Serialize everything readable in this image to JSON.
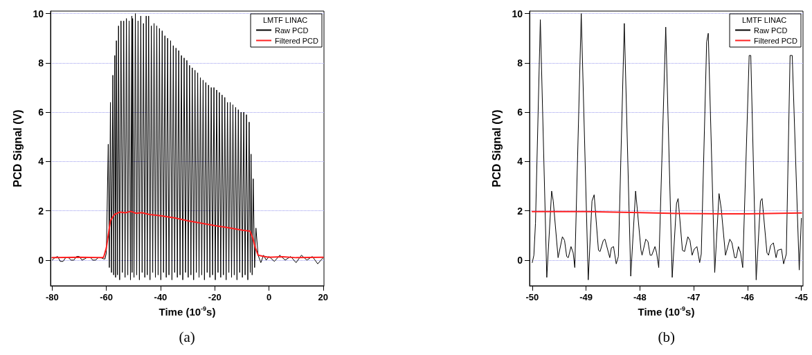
{
  "chart_data": [
    {
      "type": "line",
      "xlabel": "Time (10$^{-9}$s)",
      "ylabel": "PCD Signal (V)",
      "legend_title": "LMTF LINAC",
      "annotations": [
        "(a)"
      ],
      "xlim": [
        -80.6,
        20.3
      ],
      "xticks": [
        -80,
        -60,
        -40,
        -20,
        0,
        20
      ],
      "ylim": [
        -1.04,
        10.1
      ],
      "yticks": [
        0,
        2,
        4,
        6,
        8,
        10
      ],
      "grid": "y",
      "legend": "top right",
      "marker": "none",
      "line_style": "solid",
      "series": [
        {
          "name": "Raw PCD",
          "color": "#000000",
          "x": [
            -80,
            -79,
            -78,
            -77,
            -76,
            -75,
            -74,
            -73,
            -72,
            -71,
            -70,
            -69,
            -68,
            -67,
            -66,
            -65,
            -64,
            -63,
            -62,
            -61,
            -60.5,
            -60,
            -59.3,
            -58.9,
            -58.5,
            -58.1,
            -57.6,
            -57.3,
            -56.9,
            -56.6,
            -56.3,
            -55.9,
            -55.5,
            -55.1,
            -54.6,
            -54.1,
            -53.6,
            -53.1,
            -52.6,
            -52.1,
            -51.6,
            -51.1,
            -50.6,
            -50.5,
            -50.3,
            -49.8,
            -49.3,
            -48.8,
            -48.3,
            -47.8,
            -47.3,
            -46.8,
            -46.3,
            -45.8,
            -45.3,
            -44.9,
            -44.4,
            -43.9,
            -43.4,
            -42.9,
            -42.4,
            -41.9,
            -41.4,
            -40.9,
            -40.4,
            -39.9,
            -39.4,
            -38.9,
            -38.4,
            -37.9,
            -37.4,
            -36.9,
            -36.3,
            -35.8,
            -35.3,
            -34.8,
            -34.3,
            -33.8,
            -33.3,
            -32.8,
            -32.3,
            -31.8,
            -31.3,
            -30.8,
            -30.3,
            -29.8,
            -29.3,
            -28.8,
            -28.3,
            -27.8,
            -27.3,
            -26.8,
            -26.3,
            -25.8,
            -25.3,
            -24.8,
            -24.3,
            -23.8,
            -23.3,
            -22.8,
            -22.3,
            -21.8,
            -21.3,
            -20.8,
            -20.3,
            -19.8,
            -19.3,
            -18.8,
            -18.3,
            -17.8,
            -17.3,
            -16.8,
            -16.3,
            -15.8,
            -15.3,
            -14.8,
            -14.3,
            -13.8,
            -13.3,
            -12.8,
            -12.3,
            -11.8,
            -11.3,
            -10.8,
            -10.3,
            -9.8,
            -9.3,
            -8.8,
            -8.3,
            -7.8,
            -7.3,
            -6.9,
            -6.6,
            -6.2,
            -5.8,
            -5.3,
            -4.8,
            -4,
            -3,
            -2,
            -1,
            0,
            2,
            4,
            6,
            8,
            10,
            12,
            14,
            16,
            18,
            20
          ],
          "values": [
            0.0,
            0.1,
            0.15,
            -0.05,
            -0.05,
            0.1,
            0.1,
            0.0,
            0.0,
            0.15,
            0.15,
            0.0,
            0.05,
            0.12,
            0.12,
            0.0,
            0.0,
            0.1,
            0.1,
            0.05,
            0.05,
            0.3,
            4.7,
            -0.3,
            6.4,
            -0.5,
            7.5,
            -0.6,
            8.3,
            -0.7,
            8.9,
            -0.6,
            9.5,
            -0.8,
            9.7,
            -0.5,
            9.7,
            -0.7,
            9.8,
            -0.6,
            9.7,
            -0.8,
            9.9,
            -0.5,
            9.8,
            -0.7,
            10.0,
            -0.6,
            9.7,
            -0.8,
            9.9,
            -0.5,
            9.6,
            -0.7,
            9.9,
            -0.6,
            9.9,
            -0.8,
            9.5,
            -0.5,
            9.6,
            -0.7,
            9.5,
            -0.6,
            9.4,
            -0.8,
            9.3,
            -0.5,
            9.1,
            -0.7,
            9.0,
            -0.6,
            8.9,
            -0.8,
            8.7,
            -0.5,
            8.6,
            -0.7,
            8.5,
            -0.6,
            8.3,
            -0.8,
            8.2,
            -0.5,
            8.1,
            -0.7,
            7.9,
            -0.6,
            7.8,
            -0.8,
            7.7,
            -0.5,
            7.6,
            -0.7,
            7.4,
            -0.6,
            7.3,
            -0.8,
            7.2,
            -0.5,
            7.1,
            -0.7,
            7.0,
            -0.6,
            7.0,
            -0.8,
            6.9,
            -0.5,
            6.8,
            -0.7,
            6.7,
            -0.6,
            6.6,
            -0.8,
            6.4,
            -0.5,
            6.4,
            -0.7,
            6.3,
            -0.6,
            6.2,
            -0.8,
            6.1,
            -0.5,
            6.0,
            -0.7,
            6.0,
            -0.6,
            5.9,
            -0.8,
            5.6,
            -0.5,
            4.3,
            -0.6,
            3.3,
            -0.3,
            1.3,
            0.2,
            -0.1,
            0.2,
            0.0,
            0.15,
            -0.05,
            0.2,
            0.0,
            0.15,
            -0.1,
            0.2,
            0.0,
            0.15,
            -0.15,
            0.1
          ]
        },
        {
          "name": "Filtered PCD",
          "color": "#ff2020",
          "x": [
            -80,
            -70,
            -62,
            -61,
            -60,
            -58.5,
            -57,
            -55,
            -53,
            -51,
            -49,
            -47,
            -44,
            -40,
            -35,
            -30,
            -25,
            -20,
            -15,
            -10,
            -7,
            -6,
            -5,
            -4,
            -2,
            0,
            5,
            10,
            20
          ],
          "values": [
            0.1,
            0.12,
            0.1,
            0.12,
            0.5,
            1.6,
            1.85,
            1.95,
            1.92,
            1.98,
            1.9,
            1.93,
            1.85,
            1.8,
            1.72,
            1.6,
            1.5,
            1.4,
            1.32,
            1.22,
            1.18,
            0.9,
            0.5,
            0.2,
            0.15,
            0.12,
            0.14,
            0.1,
            0.12
          ]
        }
      ]
    },
    {
      "type": "line",
      "xlabel": "Time (10$^{-9}$s)",
      "ylabel": "PCD Signal (V)",
      "legend_title": "LMTF LINAC",
      "annotations": [
        "(b)"
      ],
      "xlim": [
        -50.05,
        -44.97
      ],
      "xticks": [
        -50,
        -49,
        -48,
        -47,
        -46,
        -45
      ],
      "ylim": [
        -1.04,
        10.1
      ],
      "yticks": [
        0,
        2,
        4,
        6,
        8,
        10
      ],
      "grid": "y",
      "legend": "top right",
      "marker": "none",
      "line_style": "solid",
      "series": [
        {
          "name": "Raw PCD",
          "color": "#000000",
          "x": [
            -50.0,
            -49.97,
            -49.94,
            -49.85,
            -49.73,
            -49.64,
            -49.61,
            -49.52,
            -49.44,
            -49.4,
            -49.36,
            -49.33,
            -49.28,
            -49.24,
            -49.21,
            -49.09,
            -48.96,
            -48.89,
            -48.85,
            -48.77,
            -48.74,
            -48.68,
            -48.65,
            -48.56,
            -48.53,
            -48.49,
            -48.44,
            -48.4,
            -48.29,
            -48.17,
            -48.08,
            -48.05,
            -47.98,
            -47.96,
            -47.89,
            -47.85,
            -47.81,
            -47.78,
            -47.72,
            -47.69,
            -47.65,
            -47.52,
            -47.4,
            -47.32,
            -47.29,
            -47.21,
            -47.17,
            -47.11,
            -47.07,
            -47.03,
            -46.99,
            -46.94,
            -46.89,
            -46.86,
            -46.76,
            -46.73,
            -46.61,
            -46.53,
            -46.49,
            -46.41,
            -46.33,
            -46.29,
            -46.24,
            -46.21,
            -46.17,
            -46.13,
            -46.09,
            -45.97,
            -45.94,
            -45.84,
            -45.76,
            -45.73,
            -45.64,
            -45.61,
            -45.57,
            -45.52,
            -45.47,
            -45.44,
            -45.37,
            -45.33,
            -45.28,
            -45.21,
            -45.17,
            -45.04,
            -45.0
          ],
          "values": [
            -0.1,
            0.2,
            1.5,
            9.75,
            -0.7,
            2.8,
            2.4,
            0.1,
            0.95,
            0.8,
            0.15,
            0.1,
            0.55,
            0.3,
            -0.3,
            10.0,
            -0.8,
            2.4,
            2.65,
            0.4,
            0.35,
            0.8,
            0.85,
            0.1,
            0.5,
            0.55,
            -0.15,
            0.15,
            9.6,
            -0.65,
            2.8,
            2.1,
            0.4,
            0.2,
            0.85,
            0.75,
            0.2,
            0.2,
            0.55,
            0.3,
            -0.3,
            9.45,
            -0.7,
            2.3,
            2.5,
            0.4,
            0.35,
            0.95,
            0.8,
            0.2,
            0.45,
            0.55,
            -0.1,
            0.25,
            8.85,
            9.2,
            -0.5,
            2.7,
            2.1,
            0.2,
            0.85,
            0.7,
            0.1,
            0.1,
            0.55,
            0.3,
            -0.3,
            8.3,
            8.3,
            -0.8,
            2.4,
            2.5,
            0.3,
            0.2,
            0.6,
            0.7,
            0.1,
            0.4,
            0.45,
            -0.15,
            0.25,
            8.3,
            8.3,
            -0.4,
            1.7
          ]
        },
        {
          "name": "Filtered PCD",
          "color": "#ff2020",
          "x": [
            -50,
            -49,
            -48,
            -47.3,
            -46.5,
            -46,
            -45
          ],
          "values": [
            1.97,
            1.97,
            1.93,
            1.89,
            1.88,
            1.88,
            1.91
          ]
        }
      ]
    }
  ]
}
